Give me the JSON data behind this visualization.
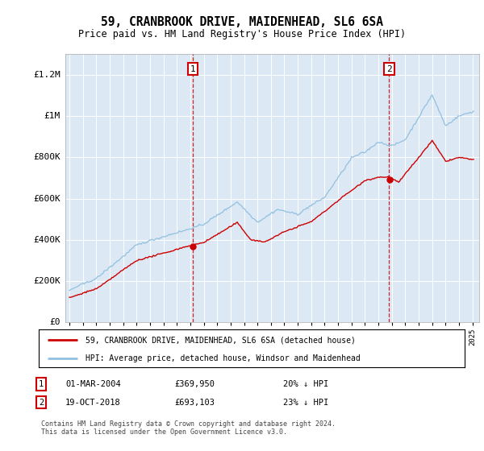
{
  "title": "59, CRANBROOK DRIVE, MAIDENHEAD, SL6 6SA",
  "subtitle": "Price paid vs. HM Land Registry's House Price Index (HPI)",
  "bg_color": "white",
  "plot_bg_color": "#dce9f5",
  "hpi_color": "#92c0e0",
  "price_color": "#cc0000",
  "marker1_x": 2004.17,
  "marker2_x": 2018.8,
  "legend_label1": "59, CRANBROOK DRIVE, MAIDENHEAD, SL6 6SA (detached house)",
  "legend_label2": "HPI: Average price, detached house, Windsor and Maidenhead",
  "footer": "Contains HM Land Registry data © Crown copyright and database right 2024.\nThis data is licensed under the Open Government Licence v3.0.",
  "ylim": [
    0,
    1300000
  ],
  "yticks": [
    0,
    200000,
    400000,
    600000,
    800000,
    1000000,
    1200000
  ],
  "ytick_labels": [
    "£0",
    "£200K",
    "£400K",
    "£600K",
    "£800K",
    "£1M",
    "£1.2M"
  ],
  "xlim_left": 1994.7,
  "xlim_right": 2025.5
}
